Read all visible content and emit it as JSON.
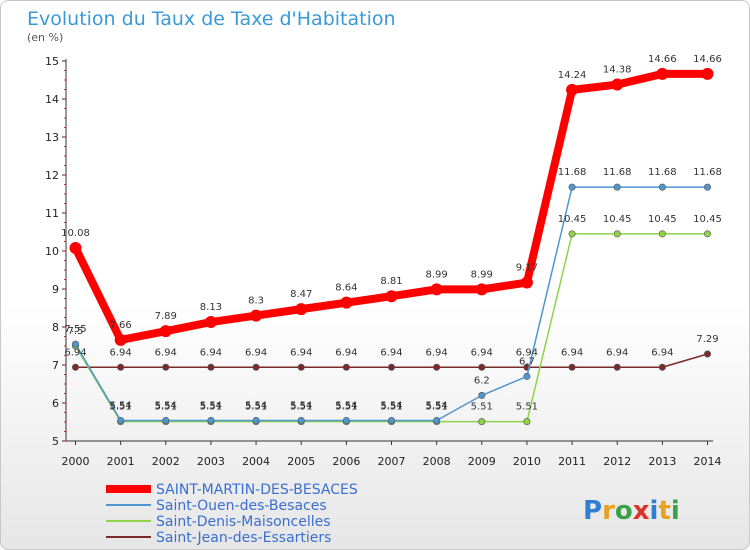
{
  "chart_data": {
    "type": "line",
    "title": "Evolution du Taux de Taxe d'Habitation",
    "subtitle": "(en %)",
    "x": [
      2000,
      2001,
      2002,
      2003,
      2004,
      2005,
      2006,
      2007,
      2008,
      2009,
      2010,
      2011,
      2012,
      2013,
      2014
    ],
    "ylim": [
      5,
      15
    ],
    "yticks": [
      5,
      6,
      7,
      8,
      9,
      10,
      11,
      12,
      13,
      14,
      15
    ],
    "grid": false,
    "legend_position": "bottom-left",
    "series": [
      {
        "name": "SAINT-MARTIN-DES-BESACES",
        "color": "#ff0000",
        "values": [
          10.08,
          7.66,
          7.89,
          8.13,
          8.3,
          8.47,
          8.64,
          8.81,
          8.99,
          8.99,
          9.17,
          14.24,
          14.38,
          14.66,
          14.66
        ]
      },
      {
        "name": "Saint-Ouen-des-Besaces",
        "color": "#4f96cf",
        "values": [
          7.55,
          5.54,
          5.54,
          5.54,
          5.54,
          5.54,
          5.54,
          5.54,
          5.54,
          6.2,
          6.7,
          11.68,
          11.68,
          11.68,
          11.68
        ]
      },
      {
        "name": "Saint-Denis-Maisoncelles",
        "color": "#8fd34a",
        "values": [
          7.5,
          5.51,
          5.51,
          5.51,
          5.51,
          5.51,
          5.51,
          5.51,
          5.51,
          5.51,
          5.51,
          10.45,
          10.45,
          10.45,
          10.45
        ]
      },
      {
        "name": "Saint-Jean-des-Essartiers",
        "color": "#7a2a2a",
        "values": [
          6.94,
          6.94,
          6.94,
          6.94,
          6.94,
          6.94,
          6.94,
          6.94,
          6.94,
          6.94,
          6.94,
          6.94,
          6.94,
          6.94,
          7.29
        ]
      }
    ],
    "data_labels": [
      {
        "series": 0,
        "labels": [
          "10.08",
          "7.66",
          "7.89",
          "8.13",
          "8.3",
          "8.47",
          "8.64",
          "8.81",
          "8.99",
          "8.99",
          "9.17",
          "14.24",
          "14.38",
          "14.66",
          "14.66"
        ]
      },
      {
        "series": 1,
        "labels": [
          "7.55",
          "5.54",
          "5.54",
          "5.54",
          "5.54",
          "5.54",
          "5.54",
          "5.54",
          "5.54",
          "6.2",
          "6.7",
          "11.68",
          "11.68",
          "11.68",
          "11.68"
        ]
      },
      {
        "series": 2,
        "labels": [
          "7.5",
          "5.51",
          "5.51",
          "5.51",
          "5.51",
          "5.51",
          "5.51",
          "5.51",
          "5.51",
          "5.51",
          "5.51",
          "10.45",
          "10.45",
          "10.45",
          "10.45"
        ]
      },
      {
        "series": 3,
        "labels": [
          "6.94",
          "6.94",
          "6.94",
          "6.94",
          "6.94",
          "6.94",
          "6.94",
          "6.94",
          "6.94",
          "6.94",
          "6.94",
          "6.94",
          "6.94",
          "6.94",
          "7.29"
        ]
      }
    ]
  },
  "logo": {
    "text": "Proxiti",
    "letters": [
      "P",
      "r",
      "o",
      "x",
      "i",
      "t",
      "i"
    ],
    "colors": [
      "#2e7fd1",
      "#e8a11c",
      "#3aa14a",
      "#d9342b",
      "#2e7fd1",
      "#e8a11c",
      "#3aa14a"
    ]
  }
}
